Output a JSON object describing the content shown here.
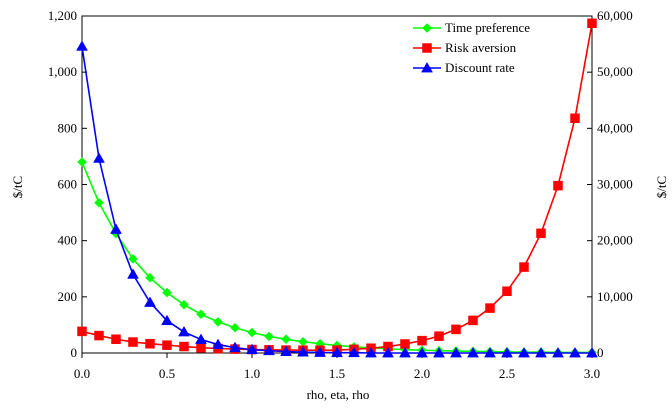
{
  "chart_data": {
    "type": "line",
    "title": "",
    "xlabel": "rho, eta, rho",
    "ylabel_left": "$/tC",
    "ylabel_right": "$/tC",
    "x": [
      0.0,
      0.1,
      0.2,
      0.3,
      0.4,
      0.5,
      0.6,
      0.7,
      0.8,
      0.9,
      1.0,
      1.1,
      1.2,
      1.3,
      1.4,
      1.5,
      1.6,
      1.7,
      1.8,
      1.9,
      2.0,
      2.1,
      2.2,
      2.3,
      2.4,
      2.5,
      2.6,
      2.7,
      2.8,
      2.9,
      3.0
    ],
    "xlim": [
      0.0,
      3.0
    ],
    "xticks": [
      0.0,
      0.5,
      1.0,
      1.5,
      2.0,
      2.5,
      3.0
    ],
    "xtick_labels": [
      "0.0",
      "0.5",
      "1.0",
      "1.5",
      "2.0",
      "2.5",
      "3.0"
    ],
    "ylim_left": [
      0,
      1200
    ],
    "yticks_left": [
      0,
      200,
      400,
      600,
      800,
      1000,
      1200
    ],
    "ytick_labels_left": [
      "0",
      "200",
      "400",
      "600",
      "800",
      "1,000",
      "1,200"
    ],
    "ylim_right": [
      0,
      60000
    ],
    "yticks_right": [
      0,
      10000,
      20000,
      30000,
      40000,
      50000,
      60000
    ],
    "ytick_labels_right": [
      "0",
      "10,000",
      "20,000",
      "30,000",
      "40,000",
      "50,000",
      "60,000"
    ],
    "grid": false,
    "legend_position": "top-right",
    "series": [
      {
        "name": "Time preference",
        "axis": "left",
        "color": "#00ff00",
        "marker": "diamond",
        "values": [
          680,
          535,
          425,
          335,
          268,
          215,
          172,
          138,
          111,
          90,
          73,
          59,
          49,
          40,
          33,
          27,
          22,
          18,
          15,
          12,
          10,
          8,
          7,
          6,
          5,
          4,
          3,
          3,
          2,
          2,
          2
        ]
      },
      {
        "name": "Risk aversion",
        "axis": "right",
        "color": "#ff0000",
        "marker": "square",
        "values": [
          3850,
          3100,
          2450,
          1950,
          1650,
          1400,
          1150,
          950,
          800,
          700,
          620,
          560,
          520,
          500,
          500,
          520,
          650,
          850,
          1150,
          1600,
          2200,
          3000,
          4200,
          5800,
          8000,
          11000,
          15300,
          21300,
          29800,
          41800,
          58700
        ]
      },
      {
        "name": "Discount rate",
        "axis": "left",
        "color": "#0000ff",
        "marker": "triangle",
        "values": [
          1092,
          693,
          440,
          280,
          180,
          115,
          75,
          48,
          30,
          19,
          12,
          8,
          5,
          3,
          2,
          1,
          1,
          0,
          0,
          0,
          0,
          0,
          0,
          0,
          0,
          0,
          0,
          0,
          0,
          0,
          0
        ]
      }
    ]
  }
}
